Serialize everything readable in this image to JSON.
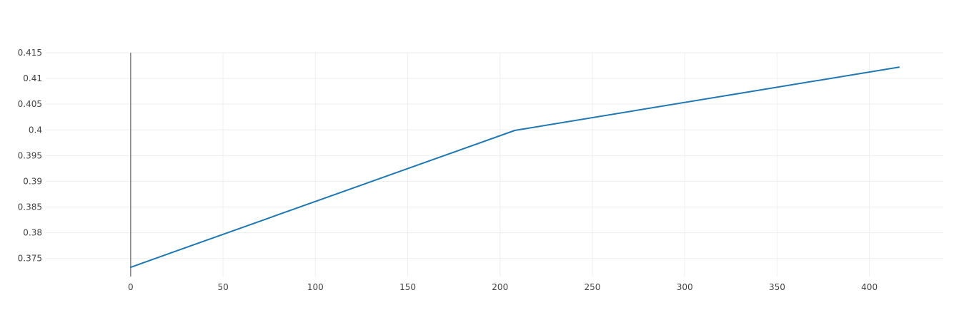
{
  "chart_data": {
    "type": "line",
    "title": "",
    "xlabel": "",
    "ylabel": "",
    "xlim": [
      -46,
      440
    ],
    "ylim": [
      0.3715,
      0.415
    ],
    "x_ticks": [
      0,
      50,
      100,
      150,
      200,
      250,
      300,
      350,
      400
    ],
    "y_ticks": [
      0.375,
      0.38,
      0.385,
      0.39,
      0.395,
      0.4,
      0.405,
      0.41,
      0.415
    ],
    "x_tick_labels": [
      "0",
      "50",
      "100",
      "150",
      "200",
      "250",
      "300",
      "350",
      "400"
    ],
    "y_tick_labels": [
      "0.375",
      "0.38",
      "0.385",
      "0.39",
      "0.395",
      "0.4",
      "0.405",
      "0.41",
      "0.415"
    ],
    "grid": true,
    "legend": "none",
    "series": [
      {
        "color": "#1f77b4",
        "x": [
          0,
          208,
          416
        ],
        "y": [
          0.3733,
          0.3999,
          0.4122
        ]
      }
    ]
  },
  "colors": {
    "grid": "#eeeeee",
    "zero_line": "#444444",
    "tick_text": "#444444"
  }
}
